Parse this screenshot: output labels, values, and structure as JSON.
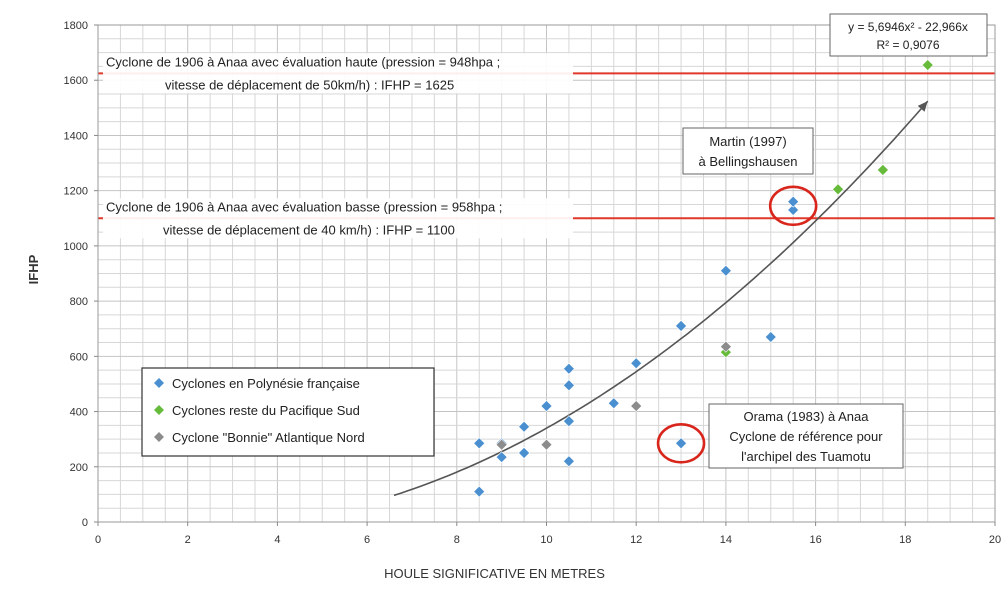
{
  "chart_data": {
    "type": "scatter",
    "xlabel": "HOULE SIGNIFICATIVE EN METRES",
    "ylabel": "IFHP",
    "xlim": [
      0,
      20
    ],
    "ylim": [
      0,
      1800
    ],
    "x_ticks": [
      "0",
      "2",
      "4",
      "6",
      "8",
      "10",
      "12",
      "14",
      "16",
      "18",
      "20"
    ],
    "y_ticks": [
      "0",
      "200",
      "400",
      "600",
      "800",
      "1000",
      "1200",
      "1400",
      "1600",
      "1800"
    ],
    "grid": true,
    "legend_position": "bottom-left",
    "series": [
      {
        "name": "Cyclones en Polynésie française",
        "color": "#4a8fd0",
        "marker": "diamond",
        "points": [
          [
            8.5,
            110
          ],
          [
            8.5,
            285
          ],
          [
            9.0,
            235
          ],
          [
            9.0,
            285
          ],
          [
            9.5,
            250
          ],
          [
            9.5,
            345
          ],
          [
            10.0,
            420
          ],
          [
            10.5,
            220
          ],
          [
            10.5,
            365
          ],
          [
            10.5,
            495
          ],
          [
            10.5,
            555
          ],
          [
            11.5,
            430
          ],
          [
            12.0,
            575
          ],
          [
            13.0,
            285
          ],
          [
            13.0,
            710
          ],
          [
            14.0,
            910
          ],
          [
            15.0,
            670
          ],
          [
            15.5,
            1130
          ],
          [
            15.5,
            1160
          ]
        ]
      },
      {
        "name": "Cyclones reste du Pacifique Sud",
        "color": "#66bb3a",
        "marker": "diamond",
        "points": [
          [
            14.0,
            615
          ],
          [
            16.5,
            1205
          ],
          [
            17.5,
            1275
          ],
          [
            18.5,
            1655
          ]
        ]
      },
      {
        "name": "Cyclone \"Bonnie\" Atlantique Nord",
        "color": "#8c8c8c",
        "marker": "diamond",
        "points": [
          [
            9.0,
            280
          ],
          [
            10.0,
            280
          ],
          [
            12.0,
            420
          ],
          [
            14.0,
            635
          ]
        ]
      }
    ],
    "trendline": {
      "equation": "y = 5,6946x² - 22,966x",
      "r_squared": "R² = 0,9076",
      "a": 5.6946,
      "b": -22.966,
      "x_start": 6.6,
      "x_end": 18.5,
      "color": "#555555"
    },
    "reference_lines": [
      {
        "value": 1625,
        "color": "#e0392b",
        "label_line1": "Cyclone de 1906 à Anaa avec évaluation haute (pression = 948hpa ;",
        "label_line2": "vitesse de déplacement de 50km/h) : IFHP = 1625"
      },
      {
        "value": 1100,
        "color": "#e0392b",
        "label_line1": "Cyclone de 1906 à Anaa avec évaluation basse (pression = 958hpa ;",
        "label_line2": "vitesse de déplacement de 40 km/h) : IFHP = 1100"
      }
    ],
    "annotations": [
      {
        "id": "martin",
        "line1": "Martin (1997)",
        "line2": "à Bellingshausen",
        "circle_center": [
          15.5,
          1145
        ]
      },
      {
        "id": "orama",
        "line1": "Orama (1983) à Anaa",
        "line2": "Cyclone de référence pour",
        "line3": "l'archipel des Tuamotu",
        "circle_center": [
          13.0,
          285
        ]
      }
    ]
  }
}
